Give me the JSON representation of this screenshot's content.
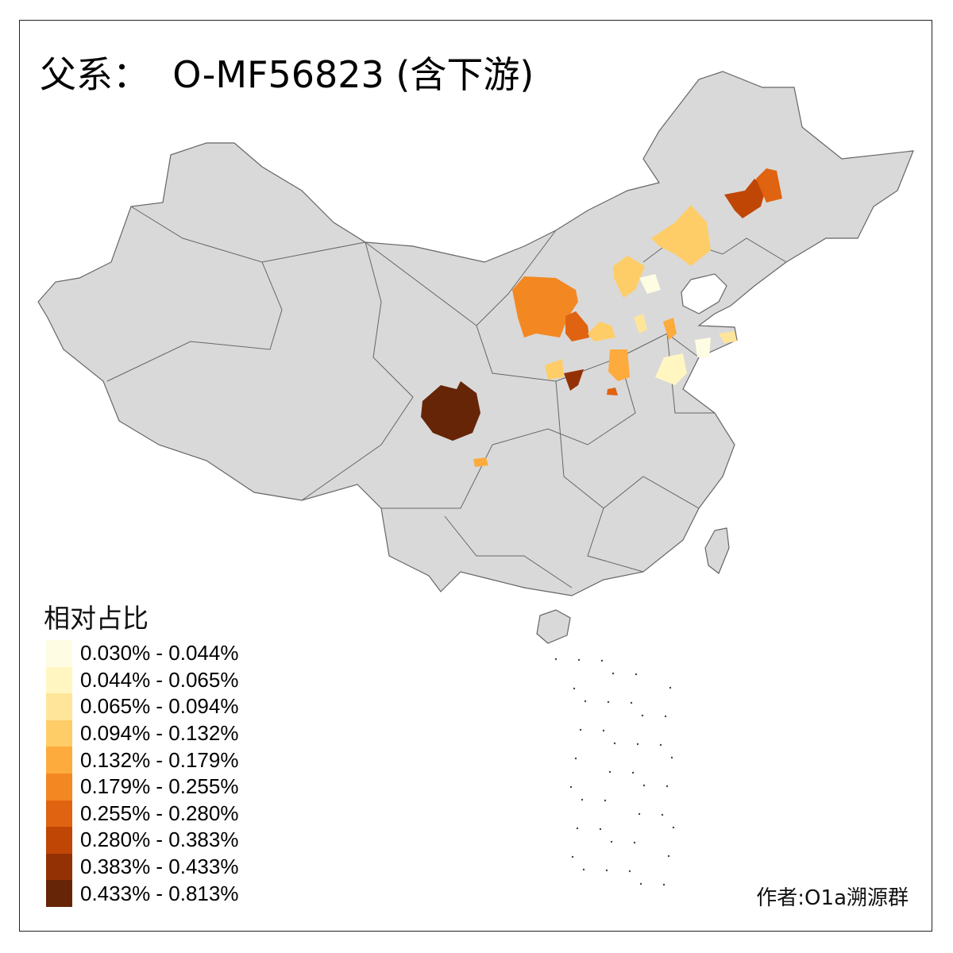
{
  "title": "父系：  O-MF56823 (含下游)",
  "legend": {
    "title": "相对占比",
    "items": [
      {
        "label": "0.030% - 0.044%",
        "color": "#FFFCE4"
      },
      {
        "label": "0.044% - 0.065%",
        "color": "#FFF6C2"
      },
      {
        "label": "0.065% - 0.094%",
        "color": "#FEE599"
      },
      {
        "label": "0.094% - 0.132%",
        "color": "#FECD68"
      },
      {
        "label": "0.132% - 0.179%",
        "color": "#FDAB3D"
      },
      {
        "label": "0.179% - 0.255%",
        "color": "#F38822"
      },
      {
        "label": "0.255% - 0.280%",
        "color": "#E06311"
      },
      {
        "label": "0.280% - 0.383%",
        "color": "#C04606"
      },
      {
        "label": "0.383% - 0.433%",
        "color": "#943104"
      },
      {
        "label": "0.433% - 0.813%",
        "color": "#662507"
      }
    ]
  },
  "author": "作者:O1a溯源群",
  "map_colors": {
    "land": "#D9D9D9",
    "border": "#666666",
    "background": "#FFFFFF"
  }
}
